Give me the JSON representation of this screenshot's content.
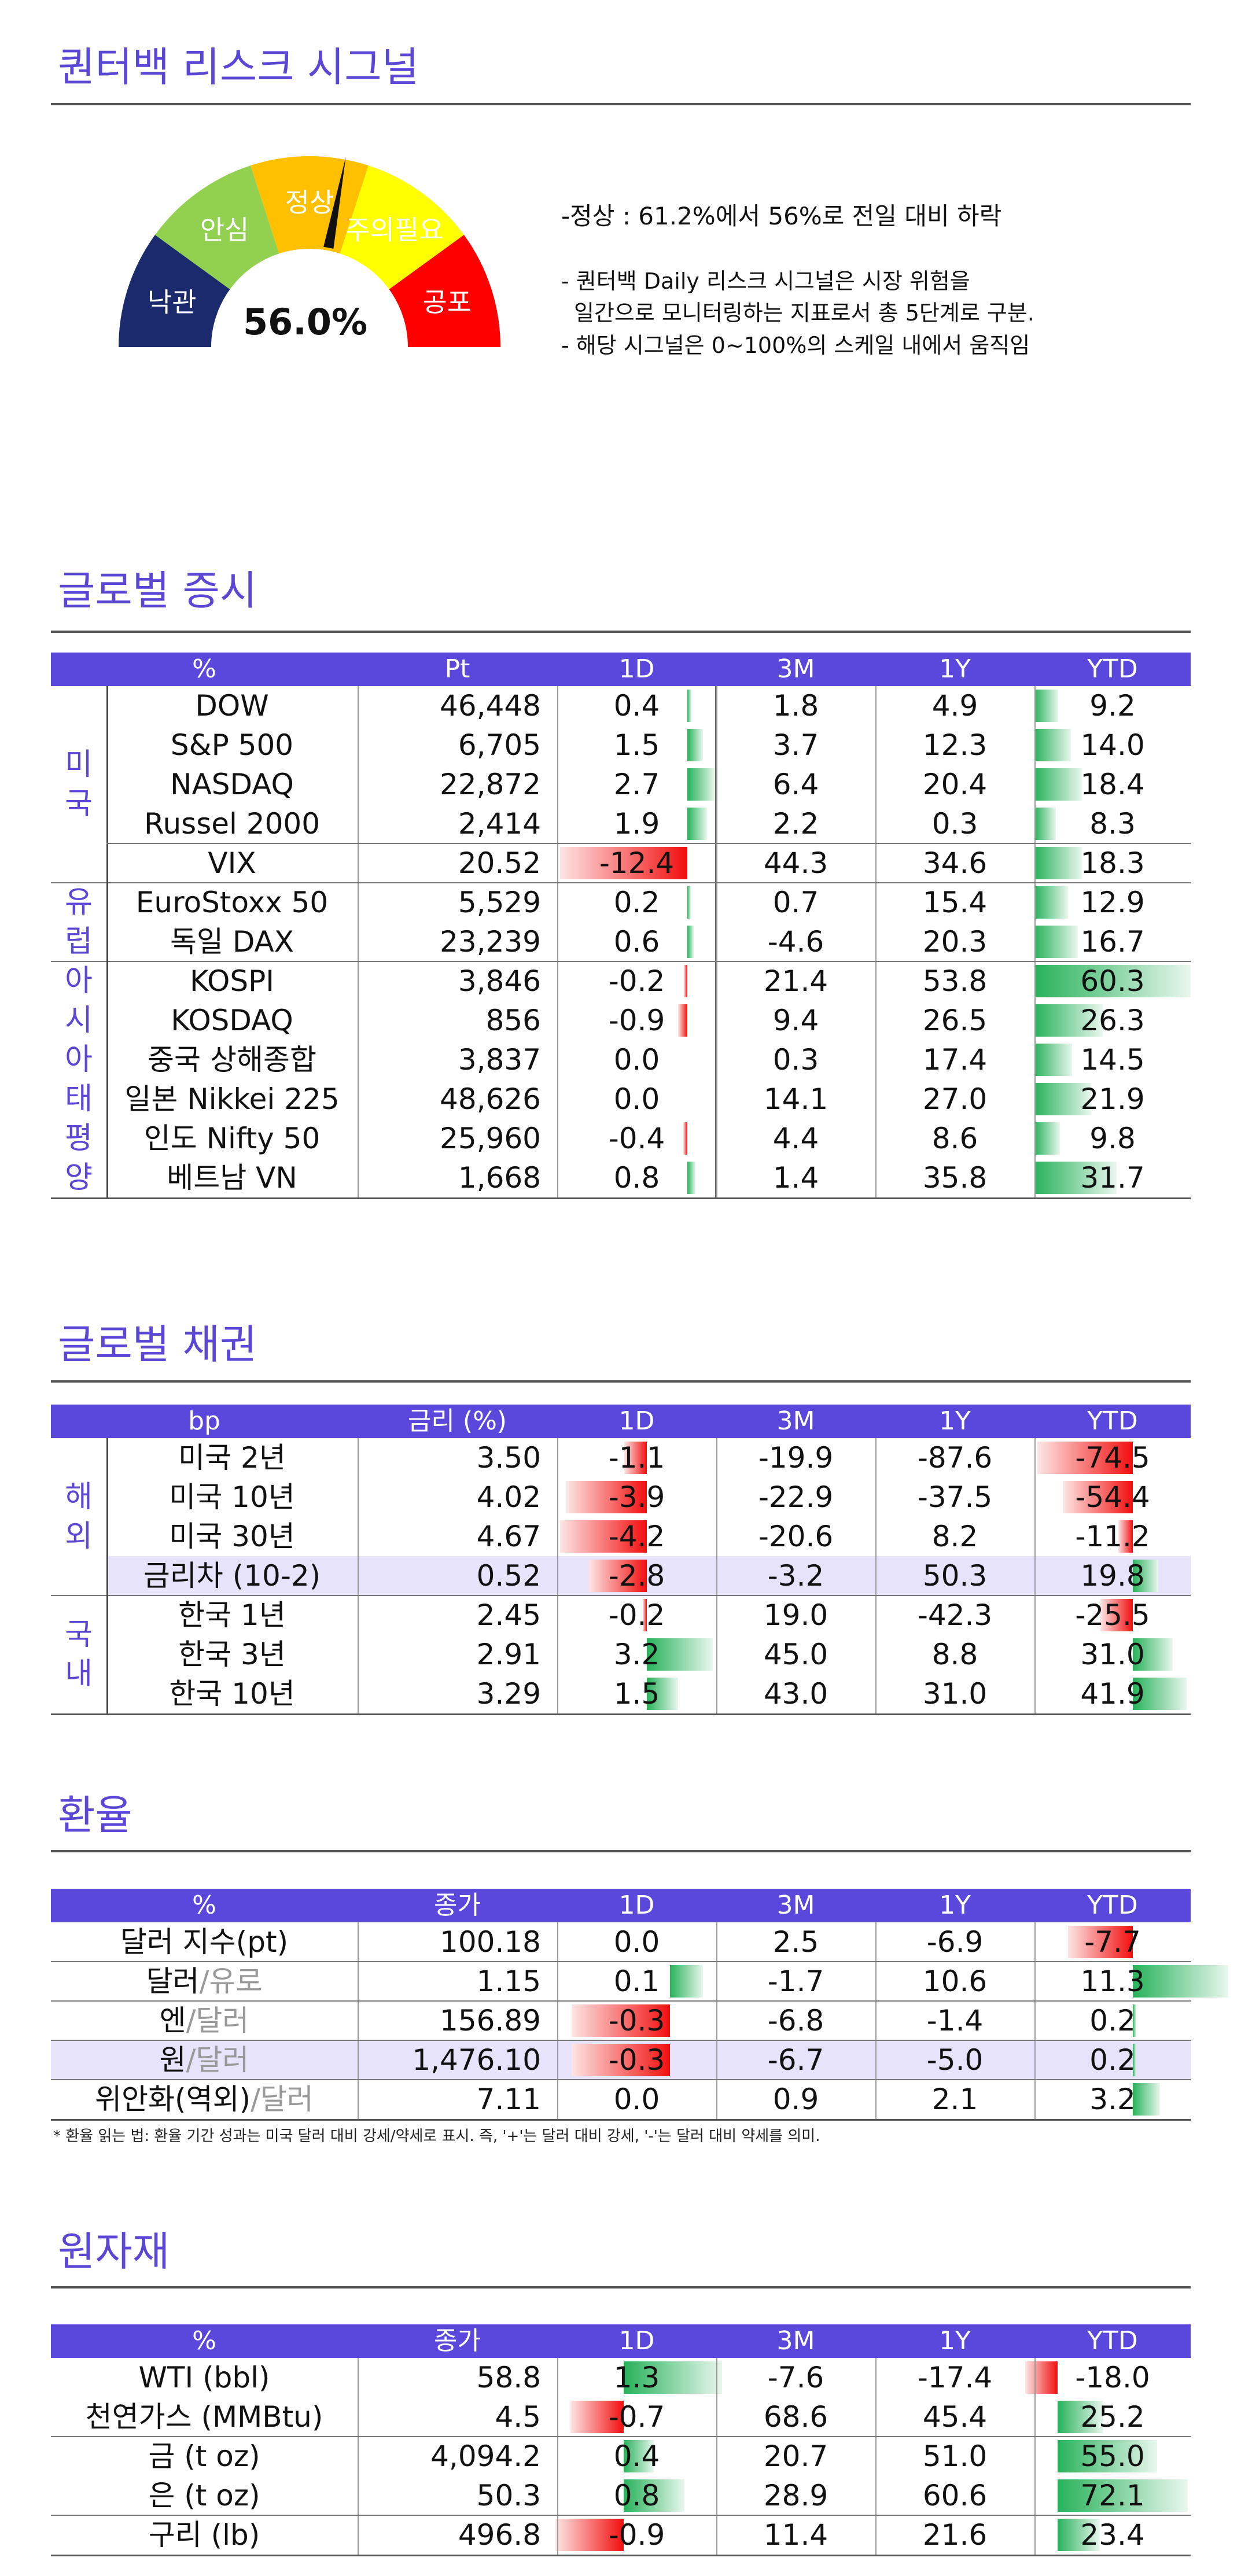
{
  "risk": {
    "title": "퀀터백 리스크 시그널",
    "gauge_value": "56.0%",
    "gauge_fraction": 0.56,
    "zones": [
      "낙관",
      "안심",
      "정상",
      "주의필요",
      "공포"
    ],
    "zone_colors": [
      "#1a2a6c",
      "#92d050",
      "#ffc000",
      "#ffff00",
      "#ff0000"
    ],
    "headline": "-정상 : 61.2%에서 56%로 전일 대비 하락",
    "desc1": "- 퀀터백 Daily 리스크 시그널은 시장 위험을",
    "desc2": "일간으로 모니터링하는 지표로서 총 5단계로 구분.",
    "desc3": "- 해당 시그널은 0~100%의 스케일 내에서 움직임"
  },
  "equity": {
    "title": "글로벌 증시",
    "headers": [
      "%",
      "Pt",
      "1D",
      "3M",
      "1Y",
      "YTD"
    ],
    "regions": [
      {
        "label": "미\n국"
      },
      {
        "label": "유\n럽"
      },
      {
        "label": "아\n시\n아\n태\n평\n양"
      }
    ],
    "rows": [
      {
        "name": "DOW",
        "pt": "46,448",
        "d1": "0.4",
        "m3": "1.8",
        "y1": "4.9",
        "ytd": "9.2"
      },
      {
        "name": "S&P 500",
        "pt": "6,705",
        "d1": "1.5",
        "m3": "3.7",
        "y1": "12.3",
        "ytd": "14.0"
      },
      {
        "name": "NASDAQ",
        "pt": "22,872",
        "d1": "2.7",
        "m3": "6.4",
        "y1": "20.4",
        "ytd": "18.4"
      },
      {
        "name": "Russel 2000",
        "pt": "2,414",
        "d1": "1.9",
        "m3": "2.2",
        "y1": "0.3",
        "ytd": "8.3"
      },
      {
        "name": "VIX",
        "pt": "20.52",
        "d1": "-12.4",
        "m3": "44.3",
        "y1": "34.6",
        "ytd": "18.3"
      },
      {
        "name": "EuroStoxx 50",
        "pt": "5,529",
        "d1": "0.2",
        "m3": "0.7",
        "y1": "15.4",
        "ytd": "12.9"
      },
      {
        "name": "독일 DAX",
        "pt": "23,239",
        "d1": "0.6",
        "m3": "-4.6",
        "y1": "20.3",
        "ytd": "16.7"
      },
      {
        "name": "KOSPI",
        "pt": "3,846",
        "d1": "-0.2",
        "m3": "21.4",
        "y1": "53.8",
        "ytd": "60.3"
      },
      {
        "name": "KOSDAQ",
        "pt": "856",
        "d1": "-0.9",
        "m3": "9.4",
        "y1": "26.5",
        "ytd": "26.3"
      },
      {
        "name": "중국 상해종합",
        "pt": "3,837",
        "d1": "0.0",
        "m3": "0.3",
        "y1": "17.4",
        "ytd": "14.5"
      },
      {
        "name": "일본 Nikkei 225",
        "pt": "48,626",
        "d1": "0.0",
        "m3": "14.1",
        "y1": "27.0",
        "ytd": "21.9"
      },
      {
        "name": "인도 Nifty 50",
        "pt": "25,960",
        "d1": "-0.4",
        "m3": "4.4",
        "y1": "8.6",
        "ytd": "9.8"
      },
      {
        "name": "베트남 VN",
        "pt": "1,668",
        "d1": "0.8",
        "m3": "1.4",
        "y1": "35.8",
        "ytd": "31.7"
      }
    ]
  },
  "bond": {
    "title": "글로벌 채권",
    "headers": [
      "bp",
      "금리 (%)",
      "1D",
      "3M",
      "1Y",
      "YTD"
    ],
    "regions": [
      {
        "label": "해\n외"
      },
      {
        "label": "국\n내"
      }
    ],
    "rows": [
      {
        "name": "미국 2년",
        "pt": "3.50",
        "d1": "-1.1",
        "m3": "-19.9",
        "y1": "-87.6",
        "ytd": "-74.5"
      },
      {
        "name": "미국 10년",
        "pt": "4.02",
        "d1": "-3.9",
        "m3": "-22.9",
        "y1": "-37.5",
        "ytd": "-54.4"
      },
      {
        "name": "미국 30년",
        "pt": "4.67",
        "d1": "-4.2",
        "m3": "-20.6",
        "y1": "8.2",
        "ytd": "-11.2"
      },
      {
        "name": "금리차 (10-2)",
        "pt": "0.52",
        "d1": "-2.8",
        "m3": "-3.2",
        "y1": "50.3",
        "ytd": "19.8"
      },
      {
        "name": "한국 1년",
        "pt": "2.45",
        "d1": "-0.2",
        "m3": "19.0",
        "y1": "-42.3",
        "ytd": "-25.5"
      },
      {
        "name": "한국 3년",
        "pt": "2.91",
        "d1": "3.2",
        "m3": "45.0",
        "y1": "8.8",
        "ytd": "31.0"
      },
      {
        "name": "한국 10년",
        "pt": "3.29",
        "d1": "1.5",
        "m3": "43.0",
        "y1": "31.0",
        "ytd": "41.9"
      }
    ]
  },
  "fx": {
    "title": "환율",
    "headers": [
      "%",
      "종가",
      "1D",
      "3M",
      "1Y",
      "YTD"
    ],
    "rows": [
      {
        "a": "달러 지수(pt)",
        "b": "",
        "pt": "100.18",
        "d1": "0.0",
        "m3": "2.5",
        "y1": "-6.9",
        "ytd": "-7.7"
      },
      {
        "a": "달러",
        "b": "/유로",
        "pt": "1.15",
        "d1": "0.1",
        "m3": "-1.7",
        "y1": "10.6",
        "ytd": "11.3"
      },
      {
        "a": "엔",
        "b": "/달러",
        "pt": "156.89",
        "d1": "-0.3",
        "m3": "-6.8",
        "y1": "-1.4",
        "ytd": "0.2"
      },
      {
        "a": "원",
        "b": "/달러",
        "pt": "1,476.10",
        "d1": "-0.3",
        "m3": "-6.7",
        "y1": "-5.0",
        "ytd": "0.2"
      },
      {
        "a": "위안화(역외)",
        "b": "/달러",
        "pt": "7.11",
        "d1": "0.0",
        "m3": "0.9",
        "y1": "2.1",
        "ytd": "3.2"
      }
    ],
    "footnote": "* 환율 읽는 법: 환율 기간 성과는 미국 달러 대비 강세/약세로 표시. 즉, '+'는 달러 대비 강세, '-'는 달러 대비 약세를 의미."
  },
  "commodity": {
    "title": "원자재",
    "headers": [
      "%",
      "종가",
      "1D",
      "3M",
      "1Y",
      "YTD"
    ],
    "rows": [
      {
        "name": "WTI (bbl)",
        "pt": "58.8",
        "d1": "1.3",
        "m3": "-7.6",
        "y1": "-17.4",
        "ytd": "-18.0"
      },
      {
        "name": "천연가스 (MMBtu)",
        "pt": "4.5",
        "d1": "-0.7",
        "m3": "68.6",
        "y1": "45.4",
        "ytd": "25.2"
      },
      {
        "name": "금 (t oz)",
        "pt": "4,094.2",
        "d1": "0.4",
        "m3": "20.7",
        "y1": "51.0",
        "ytd": "55.0"
      },
      {
        "name": "은 (t oz)",
        "pt": "50.3",
        "d1": "0.8",
        "m3": "28.9",
        "y1": "60.6",
        "ytd": "72.1"
      },
      {
        "name": "구리 (lb)",
        "pt": "496.8",
        "d1": "-0.9",
        "m3": "11.4",
        "y1": "21.6",
        "ytd": "23.4"
      }
    ]
  }
}
